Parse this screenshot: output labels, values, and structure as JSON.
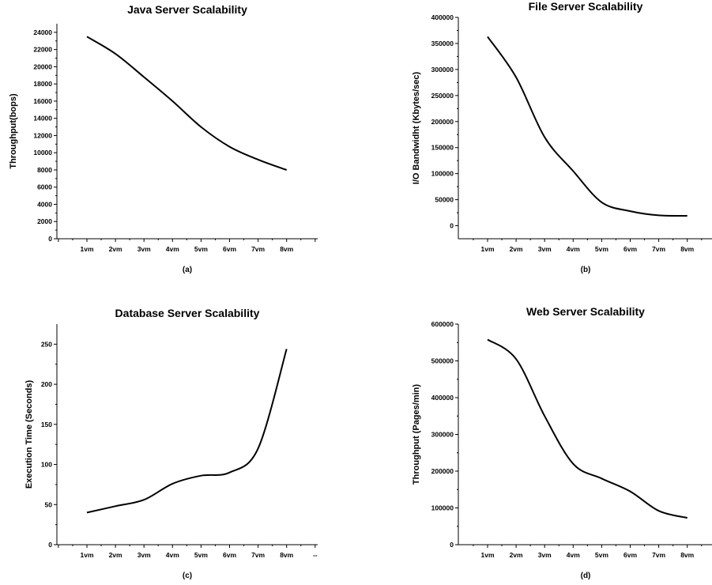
{
  "chart_data": [
    {
      "id": "a",
      "type": "line",
      "title": "Java Server Scalability",
      "ylabel": "Throughput(bops)",
      "xlabel": "",
      "caption": "(a)",
      "categories": [
        "1vm",
        "2vm",
        "3vm",
        "4vm",
        "5vm",
        "6vm",
        "7vm",
        "8vm"
      ],
      "values": [
        23500,
        21500,
        18800,
        16000,
        13000,
        10700,
        9200,
        8000
      ],
      "ylim": [
        0,
        25000
      ],
      "yticks": [
        "0",
        "2000",
        "4000",
        "6000",
        "8000",
        "10000",
        "12000",
        "14000",
        "16000",
        "18000",
        "20000",
        "22000",
        "24000"
      ],
      "extra_xtick": "",
      "grid": false
    },
    {
      "id": "b",
      "type": "line",
      "title": "File Server Scalability",
      "ylabel": "I/O Bandwidht (Kbytes/sec)",
      "xlabel": "",
      "caption": "(b)",
      "categories": [
        "1vm",
        "2vm",
        "3vm",
        "4vm",
        "5vm",
        "6vm",
        "7vm",
        "8vm"
      ],
      "values": [
        363000,
        285000,
        170000,
        105000,
        45000,
        28000,
        20000,
        19000
      ],
      "ylim": [
        -25000,
        400000
      ],
      "yticks": [
        "0",
        "50000",
        "100000",
        "150000",
        "200000",
        "250000",
        "300000",
        "350000",
        "400000"
      ],
      "extra_xtick": "",
      "grid": false
    },
    {
      "id": "c",
      "type": "line",
      "title": "Database Server Scalability",
      "ylabel": "Execution Time (Seconds)",
      "xlabel": "",
      "caption": "(c)",
      "categories": [
        "1vm",
        "2vm",
        "3vm",
        "4vm",
        "5vm",
        "6vm",
        "7vm",
        "8vm"
      ],
      "values": [
        40,
        48,
        56,
        76,
        86,
        90,
        120,
        244
      ],
      "ylim": [
        0,
        275
      ],
      "yticks": [
        "0",
        "50",
        "100",
        "150",
        "200",
        "250"
      ],
      "extra_xtick": "--",
      "grid": false
    },
    {
      "id": "d",
      "type": "line",
      "title": "Web Server Scalability",
      "ylabel": "Throughput (Pages/min)",
      "xlabel": "",
      "caption": "(d)",
      "categories": [
        "1vm",
        "2vm",
        "3vm",
        "4vm",
        "5vm",
        "6vm",
        "7vm",
        "8vm"
      ],
      "values": [
        558000,
        505000,
        350000,
        220000,
        180000,
        145000,
        92000,
        73000
      ],
      "ylim": [
        0,
        600000
      ],
      "yticks": [
        "0",
        "100000",
        "200000",
        "300000",
        "400000",
        "500000",
        "600000"
      ],
      "extra_xtick": "",
      "grid": false
    }
  ]
}
